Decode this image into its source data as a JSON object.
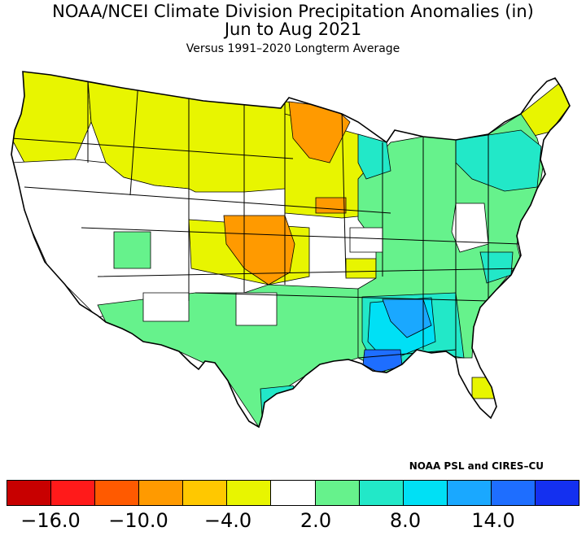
{
  "title": {
    "line1": "NOAA/NCEI Climate Division Precipitation Anomalies (in)",
    "line2": "Jun to Aug 2021",
    "line3": "Versus 1991–2020 Longterm Average"
  },
  "credit": "NOAA PSL and CIRES–CU",
  "colors": {
    "c0": "#c80000",
    "c1": "#ff1a1a",
    "c2": "#ff5a00",
    "c3": "#ff9a00",
    "c4": "#ffc800",
    "c5": "#e8f500",
    "c6": "#ffffff",
    "c7": "#66f28c",
    "c8": "#22e8c8",
    "c9": "#00e0f5",
    "c10": "#1aa8ff",
    "c11": "#1e6eff",
    "c12": "#1430f0"
  },
  "legend": {
    "swatches": [
      "#c80000",
      "#ff1a1a",
      "#ff5a00",
      "#ff9a00",
      "#ffc800",
      "#e8f500",
      "#ffffff",
      "#66f28c",
      "#22e8c8",
      "#00e0f5",
      "#1aa8ff",
      "#1e6eff",
      "#1430f0"
    ],
    "tick_labels": [
      "−16.0",
      "−10.0",
      "−4.0",
      "2.0",
      "8.0",
      "14.0"
    ]
  }
}
